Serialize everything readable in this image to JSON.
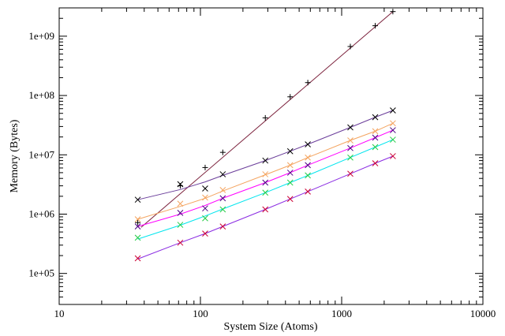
{
  "chart_data": {
    "type": "line",
    "title": "",
    "xlabel": "System Size (Atoms)",
    "ylabel": "Memory (Bytes)",
    "xscale": "log",
    "yscale": "log",
    "xlim": [
      10,
      10000
    ],
    "ylim": [
      30000,
      3000000000
    ],
    "grid": false,
    "legend": "none",
    "x_ticks": [
      10,
      100,
      1000,
      10000
    ],
    "x_tick_labels": [
      "10",
      "100",
      "1000",
      "10000"
    ],
    "y_ticks": [
      100000,
      1000000,
      10000000,
      100000000,
      1000000000
    ],
    "y_tick_labels": [
      "1e+05",
      "1e+06",
      "1e+07",
      "1e+08",
      "1e+09"
    ],
    "series": [
      {
        "color": "#000000",
        "line_color": "#7a1f3a",
        "marker": "+",
        "points": [
          [
            36,
            720000
          ],
          [
            72,
            3000000
          ],
          [
            108,
            6100000
          ],
          [
            144,
            11000000
          ],
          [
            288,
            42000000
          ],
          [
            432,
            95000000
          ],
          [
            576,
            165000000
          ],
          [
            1152,
            670000000
          ],
          [
            1728,
            1500000000
          ],
          [
            2304,
            2600000000
          ]
        ],
        "fit": [
          [
            38,
            600000
          ],
          [
            2304,
            2600000000
          ]
        ]
      },
      {
        "color": "#000000",
        "line_color": "#6a3d9a",
        "marker": "x",
        "points": [
          [
            36,
            1750000
          ],
          [
            72,
            3200000
          ],
          [
            108,
            2700000
          ],
          [
            144,
            4700000
          ],
          [
            288,
            8000000
          ],
          [
            432,
            11500000
          ],
          [
            576,
            15000000
          ],
          [
            1152,
            29000000
          ],
          [
            1728,
            43000000
          ],
          [
            2304,
            56000000
          ]
        ],
        "fit": [
          [
            36,
            1750000
          ],
          [
            72,
            2600000
          ],
          [
            108,
            3500000
          ],
          [
            144,
            4500000
          ],
          [
            288,
            8000000
          ],
          [
            432,
            11500000
          ],
          [
            576,
            15000000
          ],
          [
            1152,
            29000000
          ],
          [
            1728,
            43000000
          ],
          [
            2304,
            56000000
          ]
        ]
      },
      {
        "color": "#f4a460",
        "line_color": "#f4a460",
        "marker": "x",
        "points": [
          [
            36,
            820000
          ],
          [
            72,
            1500000
          ],
          [
            108,
            1900000
          ],
          [
            144,
            2550000
          ],
          [
            288,
            4700000
          ],
          [
            432,
            6700000
          ],
          [
            576,
            9000000
          ],
          [
            1152,
            17500000
          ],
          [
            1728,
            25000000
          ],
          [
            2304,
            34000000
          ]
        ],
        "fit": [
          [
            36,
            820000
          ],
          [
            72,
            1350000
          ],
          [
            108,
            1850000
          ],
          [
            144,
            2450000
          ],
          [
            288,
            4600000
          ],
          [
            432,
            6700000
          ],
          [
            576,
            9000000
          ],
          [
            1152,
            17500000
          ],
          [
            1728,
            25000000
          ],
          [
            2304,
            34000000
          ]
        ]
      },
      {
        "color": "#4b0082",
        "line_color": "#ff00ff",
        "marker": "x",
        "points": [
          [
            36,
            620000
          ],
          [
            72,
            1050000
          ],
          [
            108,
            1250000
          ],
          [
            144,
            1850000
          ],
          [
            288,
            3400000
          ],
          [
            432,
            5000000
          ],
          [
            576,
            6700000
          ],
          [
            1152,
            13000000
          ],
          [
            1728,
            19500000
          ],
          [
            2304,
            26000000
          ]
        ],
        "fit": [
          [
            36,
            620000
          ],
          [
            72,
            1000000
          ],
          [
            108,
            1400000
          ],
          [
            144,
            1850000
          ],
          [
            288,
            3400000
          ],
          [
            432,
            5000000
          ],
          [
            576,
            6700000
          ],
          [
            1152,
            13000000
          ],
          [
            1728,
            19500000
          ],
          [
            2304,
            26000000
          ]
        ]
      },
      {
        "color": "#22cc44",
        "line_color": "#00e5ee",
        "marker": "x",
        "points": [
          [
            36,
            400000
          ],
          [
            72,
            660000
          ],
          [
            108,
            850000
          ],
          [
            144,
            1200000
          ],
          [
            288,
            2300000
          ],
          [
            432,
            3400000
          ],
          [
            576,
            4500000
          ],
          [
            1152,
            9000000
          ],
          [
            1728,
            13500000
          ],
          [
            2304,
            18000000
          ]
        ],
        "fit": [
          [
            36,
            380000
          ],
          [
            72,
            650000
          ],
          [
            108,
            930000
          ],
          [
            144,
            1220000
          ],
          [
            288,
            2300000
          ],
          [
            432,
            3400000
          ],
          [
            576,
            4500000
          ],
          [
            1152,
            9000000
          ],
          [
            1728,
            13500000
          ],
          [
            2304,
            18000000
          ]
        ]
      },
      {
        "color": "#cc0033",
        "line_color": "#8a2be2",
        "marker": "x",
        "points": [
          [
            36,
            180000
          ],
          [
            72,
            330000
          ],
          [
            108,
            470000
          ],
          [
            144,
            620000
          ],
          [
            288,
            1200000
          ],
          [
            432,
            1800000
          ],
          [
            576,
            2400000
          ],
          [
            1152,
            4800000
          ],
          [
            1728,
            7200000
          ],
          [
            2304,
            9500000
          ]
        ],
        "fit": [
          [
            36,
            175000
          ],
          [
            72,
            330000
          ],
          [
            108,
            470000
          ],
          [
            144,
            620000
          ],
          [
            288,
            1200000
          ],
          [
            432,
            1800000
          ],
          [
            576,
            2400000
          ],
          [
            1152,
            4800000
          ],
          [
            1728,
            7200000
          ],
          [
            2304,
            9500000
          ]
        ]
      }
    ]
  }
}
